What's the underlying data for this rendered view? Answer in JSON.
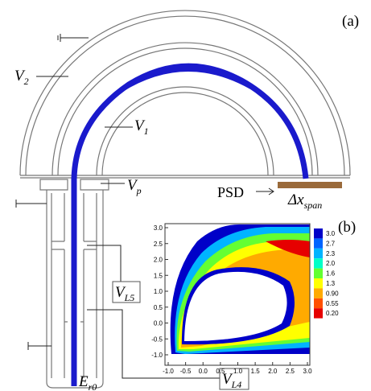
{
  "panel_a": {
    "label": "(a)",
    "v2": {
      "main": "V",
      "sub": "2"
    },
    "v1": {
      "main": "V",
      "sub": "1"
    },
    "vp": {
      "main": "V",
      "sub": "p"
    },
    "psd": "PSD",
    "span": {
      "main": "Δx",
      "sub": "span"
    },
    "vl5": {
      "main": "V",
      "sub": "L5"
    },
    "vl4": {
      "main": "V",
      "sub": "L4"
    },
    "er0": {
      "main": "E",
      "sub": "r0"
    }
  },
  "panel_b": {
    "label": "(b)",
    "yticks": [
      "3.0",
      "2.5",
      "2.0",
      "1.5",
      "1.0",
      "0.5",
      "0.0",
      "-0.5",
      "-1.0"
    ],
    "xticks": [
      "-1.0",
      "-0.5",
      "0.0",
      "0.5",
      "1.0",
      "1.5",
      "2.0",
      "2.5",
      "3.0"
    ],
    "colorbar": [
      {
        "label": "3.0",
        "color": "#0000c8"
      },
      {
        "label": "2.7",
        "color": "#0064ff"
      },
      {
        "label": "2.3",
        "color": "#00b4ff"
      },
      {
        "label": "2.0",
        "color": "#00ffc8"
      },
      {
        "label": "1.6",
        "color": "#64ff32"
      },
      {
        "label": "1.3",
        "color": "#ffff00"
      },
      {
        "label": "0.90",
        "color": "#ffaa00"
      },
      {
        "label": "0.55",
        "color": "#ff5000"
      },
      {
        "label": "0.20",
        "color": "#e60000"
      }
    ]
  }
}
